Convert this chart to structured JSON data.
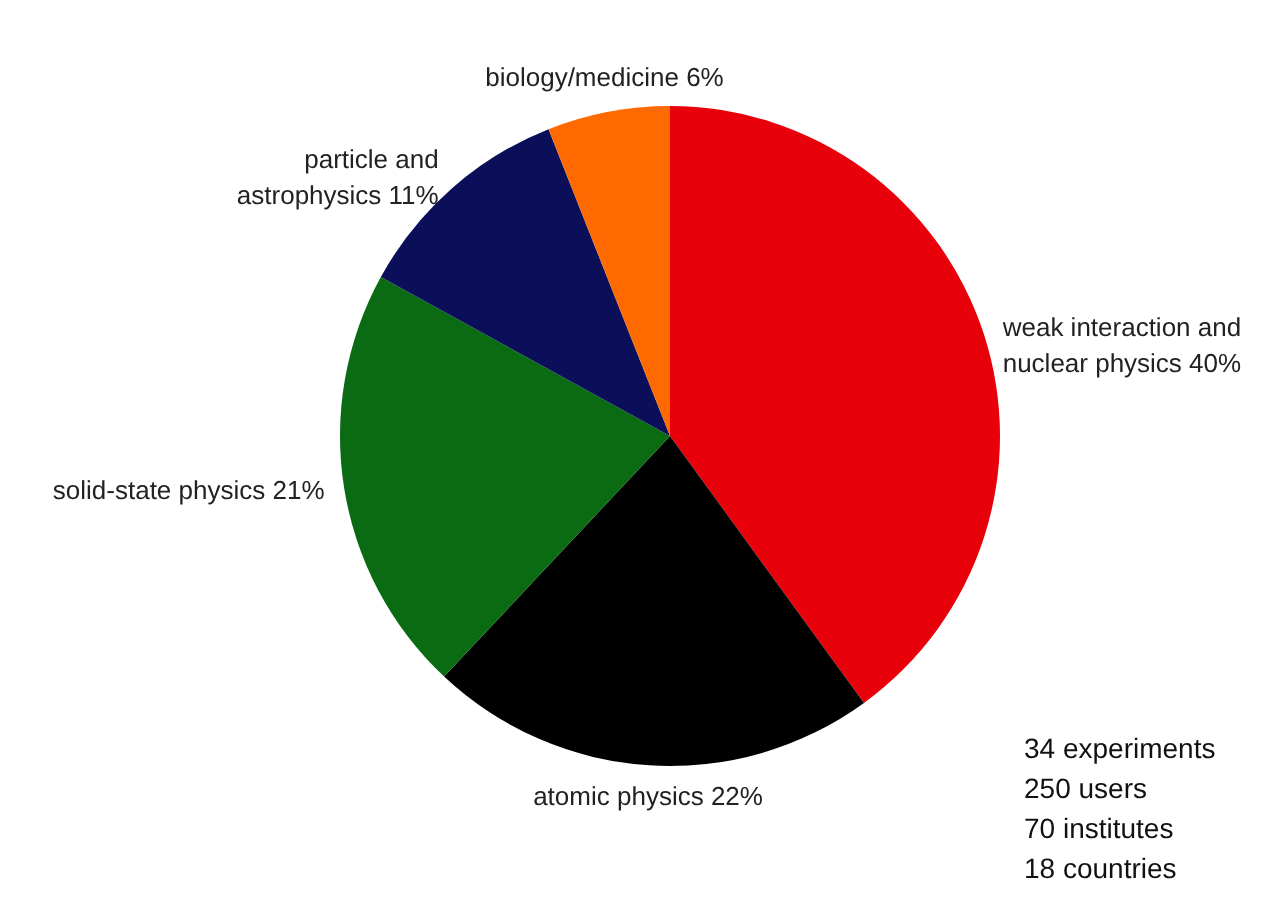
{
  "chart_data": {
    "type": "pie",
    "categories": [
      "weak interaction and nuclear physics",
      "atomic physics",
      "solid-state physics",
      "particle and astrophysics",
      "biology/medicine"
    ],
    "values": [
      40,
      22,
      21,
      11,
      6
    ],
    "value_labels": [
      "40%",
      "22%",
      "21%",
      "11%",
      "6%"
    ],
    "colors": [
      "#e8000b",
      "#000000",
      "#0a6b12",
      "#0b0f5a",
      "#ff6a00"
    ],
    "annotations": [
      "34 experiments",
      "250 users",
      "70 institutes",
      "18 countries"
    ]
  }
}
